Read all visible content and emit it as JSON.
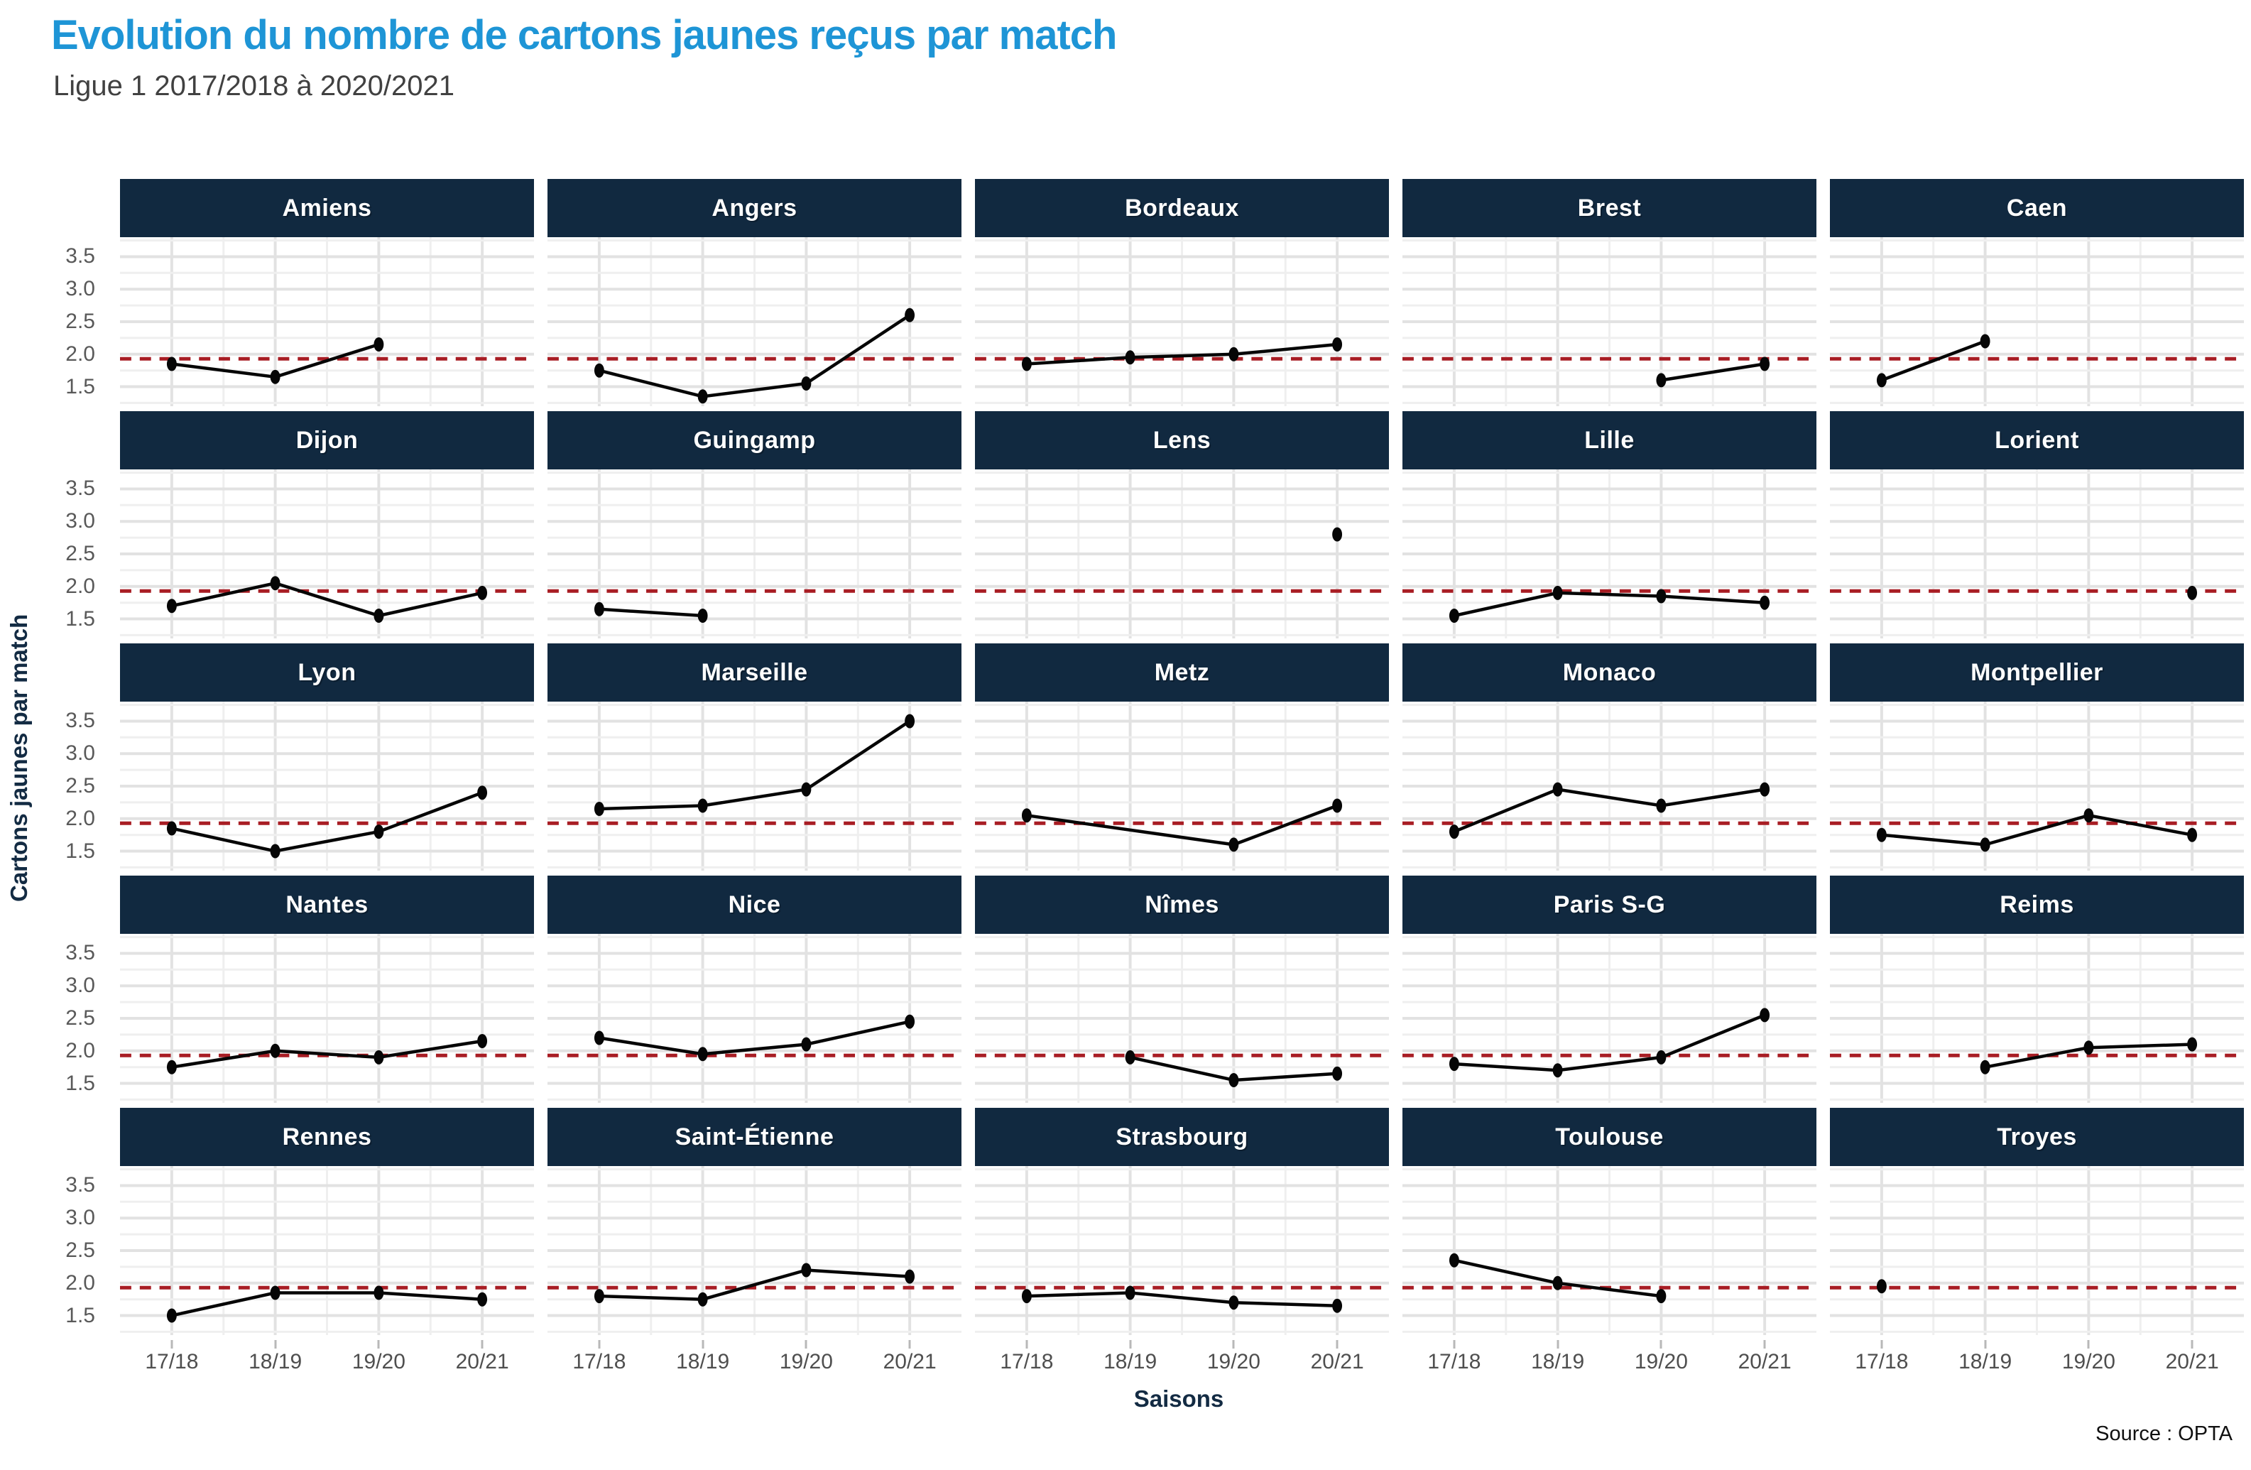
{
  "header": {
    "title": "Evolution du nombre de cartons jaunes reçus par match",
    "subtitle": "Ligue 1 2017/2018 à 2020/2021"
  },
  "axes": {
    "y_label": "Cartons jaunes par match",
    "x_label": "Saisons"
  },
  "footer": {
    "source": "Source : OPTA"
  },
  "colors": {
    "title_blue": "#1E95D6",
    "header_navy": "#112940",
    "reference_red": "#A81D24",
    "line_black": "#060606",
    "grid_major": "#e2e2e2",
    "grid_minor": "#efefef"
  },
  "chart_data": {
    "type": "line",
    "title": "Evolution du nombre de cartons jaunes reçus par match",
    "subtitle": "Ligue 1 2017/2018 à 2020/2021",
    "x_categories": [
      "17/18",
      "18/19",
      "19/20",
      "20/21"
    ],
    "y_ticks": [
      3.5,
      3.0,
      2.5,
      2.0,
      1.5
    ],
    "ylim": [
      1.2,
      3.8
    ],
    "grid": {
      "rows": 5,
      "cols": 5
    },
    "legend": "none",
    "reference_line": {
      "value": 1.93,
      "style": "dashed",
      "color": "#A81D24"
    },
    "facets": [
      {
        "team": "Amiens",
        "values": [
          1.85,
          1.65,
          2.15,
          null
        ]
      },
      {
        "team": "Angers",
        "values": [
          1.75,
          1.35,
          1.55,
          2.6
        ]
      },
      {
        "team": "Bordeaux",
        "values": [
          1.85,
          1.95,
          2.0,
          2.15
        ]
      },
      {
        "team": "Brest",
        "values": [
          null,
          null,
          1.6,
          1.85
        ]
      },
      {
        "team": "Caen",
        "values": [
          1.6,
          2.2,
          null,
          null
        ]
      },
      {
        "team": "Dijon",
        "values": [
          1.7,
          2.05,
          1.55,
          1.9
        ]
      },
      {
        "team": "Guingamp",
        "values": [
          1.65,
          1.55,
          null,
          null
        ]
      },
      {
        "team": "Lens",
        "values": [
          null,
          null,
          null,
          2.8
        ]
      },
      {
        "team": "Lille",
        "values": [
          1.55,
          1.9,
          1.85,
          1.75
        ]
      },
      {
        "team": "Lorient",
        "values": [
          null,
          null,
          null,
          1.9
        ]
      },
      {
        "team": "Lyon",
        "values": [
          1.85,
          1.5,
          1.8,
          2.4
        ]
      },
      {
        "team": "Marseille",
        "values": [
          2.15,
          2.2,
          2.45,
          3.5
        ]
      },
      {
        "team": "Metz",
        "values": [
          2.05,
          null,
          1.6,
          2.2
        ]
      },
      {
        "team": "Monaco",
        "values": [
          1.8,
          2.45,
          2.2,
          2.45
        ]
      },
      {
        "team": "Montpellier",
        "values": [
          1.75,
          1.6,
          2.05,
          1.75
        ]
      },
      {
        "team": "Nantes",
        "values": [
          1.75,
          2.0,
          1.9,
          2.15
        ]
      },
      {
        "team": "Nice",
        "values": [
          2.2,
          1.95,
          2.1,
          2.45
        ]
      },
      {
        "team": "Nîmes",
        "values": [
          null,
          1.9,
          1.55,
          1.65
        ]
      },
      {
        "team": "Paris S-G",
        "values": [
          1.8,
          1.7,
          1.9,
          2.55
        ]
      },
      {
        "team": "Reims",
        "values": [
          null,
          1.75,
          2.05,
          2.1
        ]
      },
      {
        "team": "Rennes",
        "values": [
          1.5,
          1.85,
          1.85,
          1.75
        ]
      },
      {
        "team": "Saint-Étienne",
        "values": [
          1.8,
          1.75,
          2.2,
          2.1
        ]
      },
      {
        "team": "Strasbourg",
        "values": [
          1.8,
          1.85,
          1.7,
          1.65
        ]
      },
      {
        "team": "Toulouse",
        "values": [
          2.35,
          2.0,
          1.8,
          null
        ]
      },
      {
        "team": "Troyes",
        "values": [
          1.95,
          null,
          null,
          null
        ]
      }
    ]
  }
}
